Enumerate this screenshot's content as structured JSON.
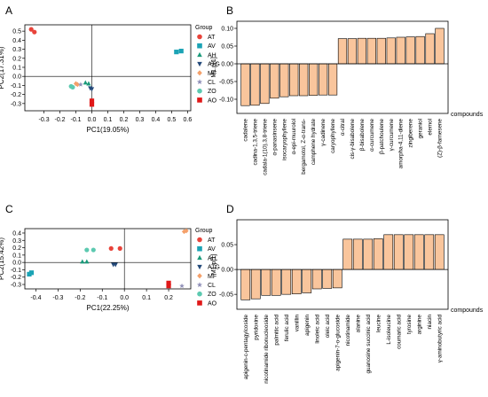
{
  "chart_data": [
    {
      "panel_label": "A",
      "type": "scatter",
      "xlabel": "PC1(19.05%)",
      "ylabel": "PC2(17.31%)",
      "xlim": [
        -0.42,
        0.62
      ],
      "ylim": [
        -0.38,
        0.57
      ],
      "xticks": [
        -0.3,
        -0.2,
        -0.1,
        0.0,
        0.1,
        0.2,
        0.3,
        0.4,
        0.5,
        0.6
      ],
      "xtick_labels": [
        "-0.3",
        "-0.2",
        "-0.1",
        "0.0",
        "0.1",
        "0.2",
        "0.3",
        "0.4",
        "0.5",
        "0.6"
      ],
      "yticks": [
        -0.3,
        -0.2,
        -0.1,
        0.0,
        0.1,
        0.2,
        0.3,
        0.4,
        0.5
      ],
      "ytick_labels": [
        "-0.3",
        "-0.2",
        "-0.1",
        "0.0",
        "0.1",
        "0.2",
        "0.3",
        "0.4",
        "0.5"
      ],
      "legend_title": "Group",
      "legend_position": "right",
      "series": [
        {
          "name": "AT",
          "color": "#e8433a",
          "marker": "circle",
          "points": [
            [
              -0.38,
              0.52
            ],
            [
              -0.36,
              0.49
            ]
          ]
        },
        {
          "name": "AV",
          "color": "#1ba3b5",
          "marker": "square",
          "points": [
            [
              0.53,
              0.27
            ],
            [
              0.56,
              0.28
            ]
          ]
        },
        {
          "name": "AH",
          "color": "#1a9a7a",
          "marker": "triangle-up",
          "points": [
            [
              -0.04,
              -0.07
            ],
            [
              -0.02,
              -0.08
            ]
          ]
        },
        {
          "name": "ATG",
          "color": "#244a7a",
          "marker": "triangle-down",
          "points": [
            [
              -0.01,
              -0.13
            ],
            [
              0.0,
              -0.14
            ]
          ]
        },
        {
          "name": "MF",
          "color": "#f4a06a",
          "marker": "diamond",
          "points": [
            [
              -0.1,
              -0.08
            ],
            [
              -0.09,
              -0.09
            ]
          ]
        },
        {
          "name": "CL",
          "color": "#9090b8",
          "marker": "star",
          "points": [
            [
              -0.07,
              -0.09
            ]
          ]
        },
        {
          "name": "ZO",
          "color": "#5cc9b0",
          "marker": "circle",
          "points": [
            [
              -0.13,
              -0.11
            ],
            [
              -0.12,
              -0.12
            ]
          ]
        },
        {
          "name": "AO",
          "color": "#e01818",
          "marker": "square",
          "points": [
            [
              0.0,
              -0.27
            ],
            [
              0.0,
              -0.31
            ]
          ]
        }
      ]
    },
    {
      "panel_label": "B",
      "type": "bar",
      "ylabel": "M1.p[1]",
      "xlabel": "compounds",
      "ylim": [
        -0.14,
        0.12
      ],
      "yticks": [
        -0.1,
        -0.05,
        0.0,
        0.05,
        0.1
      ],
      "ytick_labels": [
        "-0.10",
        "-0.05",
        "0.00",
        "0.05",
        "0.10"
      ],
      "bar_color": "#f9c59c",
      "categories": [
        "cadalene",
        "cadina-1,3,5-triene",
        "cadala-1(10),3,8-triene",
        "α-panasinsene",
        "isocaryophyllene",
        "α-epi-muurolol",
        "bergamotol, Z-α-trans-",
        "camphene hydrate",
        "γ-cadinene",
        "caryophyllene",
        "α-citral",
        "cis-γ-bisabolene",
        "β-bisabolene",
        "α-curcumene",
        "β-patchoulene",
        "γ-curcumene",
        "amorpha-4,11-diene",
        "zingiberene",
        "geraniol",
        "elemol",
        "(Z)-β-farnesene"
      ],
      "values": [
        -0.118,
        -0.117,
        -0.112,
        -0.097,
        -0.093,
        -0.09,
        -0.09,
        -0.089,
        -0.088,
        -0.088,
        0.071,
        0.071,
        0.072,
        0.072,
        0.072,
        0.073,
        0.075,
        0.076,
        0.077,
        0.085,
        0.1
      ]
    },
    {
      "panel_label": "C",
      "type": "scatter",
      "xlabel": "PC1(22.25%)",
      "ylabel": "PC2(15.42%)",
      "xlim": [
        -0.45,
        0.3
      ],
      "ylim": [
        -0.36,
        0.46
      ],
      "xticks": [
        -0.4,
        -0.3,
        -0.2,
        -0.1,
        0.0,
        0.1,
        0.2
      ],
      "xtick_labels": [
        "-0.4",
        "-0.3",
        "-0.2",
        "-0.1",
        "0.0",
        "0.1",
        "0.2"
      ],
      "yticks": [
        -0.3,
        -0.2,
        -0.1,
        0.0,
        0.1,
        0.2,
        0.3,
        0.4
      ],
      "ytick_labels": [
        "-0.3",
        "-0.2",
        "-0.1",
        "0.0",
        "0.1",
        "0.2",
        "0.3",
        "0.4"
      ],
      "legend_title": "Group",
      "legend_position": "right",
      "series": [
        {
          "name": "AT",
          "color": "#e8433a",
          "marker": "circle",
          "points": [
            [
              -0.06,
              0.19
            ],
            [
              -0.02,
              0.19
            ]
          ]
        },
        {
          "name": "AV",
          "color": "#1ba3b5",
          "marker": "square",
          "points": [
            [
              -0.43,
              -0.16
            ],
            [
              -0.42,
              -0.14
            ]
          ]
        },
        {
          "name": "AH",
          "color": "#1a9a7a",
          "marker": "triangle-up",
          "points": [
            [
              -0.19,
              0.01
            ],
            [
              -0.17,
              0.01
            ]
          ]
        },
        {
          "name": "ATG",
          "color": "#244a7a",
          "marker": "triangle-down",
          "points": [
            [
              -0.05,
              -0.03
            ],
            [
              -0.04,
              -0.03
            ]
          ]
        },
        {
          "name": "MF",
          "color": "#f4a06a",
          "marker": "diamond",
          "points": [
            [
              0.27,
              0.42
            ],
            [
              0.28,
              0.43
            ]
          ]
        },
        {
          "name": "CL",
          "color": "#9090b8",
          "marker": "star",
          "points": [
            [
              0.26,
              -0.32
            ]
          ]
        },
        {
          "name": "ZO",
          "color": "#5cc9b0",
          "marker": "circle",
          "points": [
            [
              -0.17,
              0.17
            ],
            [
              -0.14,
              0.17
            ]
          ]
        },
        {
          "name": "AO",
          "color": "#e01818",
          "marker": "square",
          "points": [
            [
              0.2,
              -0.28
            ],
            [
              0.2,
              -0.32
            ]
          ]
        }
      ]
    },
    {
      "panel_label": "D",
      "type": "bar",
      "ylabel": "M1.p[1]",
      "xlabel": "compounds",
      "ylim": [
        -0.08,
        0.1
      ],
      "yticks": [
        -0.05,
        0.0,
        0.05
      ],
      "ytick_labels": [
        "-0.05",
        "0.00",
        "0.05"
      ],
      "bar_color": "#f9c59c",
      "categories": [
        "apigenin-c-pentagylcoside",
        "pyridoxine",
        "nicotinamide ribonucleoside",
        "palmitic acid",
        "ferulic acid",
        "vanillin",
        "apigenin",
        "linoleic acid",
        "oleic acid",
        "apigenin-7-o-glucoside",
        "nicotinamide",
        "alanine",
        "guanosine succinic acid",
        "leucine",
        "L-isoleucine",
        "coumaric acid",
        "tyrosine",
        "arginine",
        "niacin",
        "γ-aminobutyric acid"
      ],
      "values": [
        -0.061,
        -0.059,
        -0.052,
        -0.052,
        -0.05,
        -0.049,
        -0.047,
        -0.039,
        -0.038,
        -0.037,
        0.061,
        0.061,
        0.061,
        0.062,
        0.07,
        0.07,
        0.07,
        0.07,
        0.07,
        0.07
      ]
    }
  ]
}
